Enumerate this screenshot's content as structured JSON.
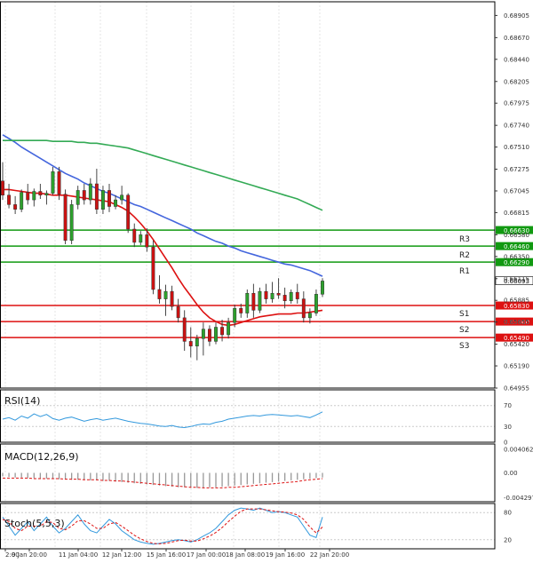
{
  "chart_data": {
    "type": "candlestick",
    "main": {
      "ylim": [
        0.64955,
        0.6905
      ],
      "y_ticks": [
        "0.68905",
        "0.68670",
        "0.68440",
        "0.68205",
        "0.67975",
        "0.67740",
        "0.67510",
        "0.67275",
        "0.67045",
        "0.66815",
        "0.66580",
        "0.66350",
        "0.66115",
        "0.65885",
        "0.65655",
        "0.65420",
        "0.65190",
        "0.64955"
      ],
      "candles": [
        [
          0.6715,
          0.6735,
          0.6695,
          0.67
        ],
        [
          0.67,
          0.6712,
          0.6686,
          0.669
        ],
        [
          0.669,
          0.6699,
          0.668,
          0.6685
        ],
        [
          0.6685,
          0.6706,
          0.6682,
          0.6703
        ],
        [
          0.6703,
          0.6712,
          0.669,
          0.6695
        ],
        [
          0.6695,
          0.6707,
          0.6688,
          0.6704
        ],
        [
          0.6704,
          0.6712,
          0.6696,
          0.67
        ],
        [
          0.67,
          0.6705,
          0.669,
          0.6702
        ],
        [
          0.6702,
          0.673,
          0.67,
          0.6725
        ],
        [
          0.6725,
          0.673,
          0.6695,
          0.6701
        ],
        [
          0.6701,
          0.6706,
          0.6648,
          0.6652
        ],
        [
          0.6652,
          0.6695,
          0.6648,
          0.669
        ],
        [
          0.669,
          0.671,
          0.6685,
          0.6705
        ],
        [
          0.6705,
          0.6712,
          0.669,
          0.6695
        ],
        [
          0.6695,
          0.6718,
          0.669,
          0.6712
        ],
        [
          0.6712,
          0.6728,
          0.668,
          0.6685
        ],
        [
          0.6685,
          0.671,
          0.668,
          0.6705
        ],
        [
          0.6705,
          0.6712,
          0.6682,
          0.6688
        ],
        [
          0.6688,
          0.67,
          0.6685,
          0.6695
        ],
        [
          0.6695,
          0.671,
          0.669,
          0.67
        ],
        [
          0.67,
          0.6702,
          0.666,
          0.6664
        ],
        [
          0.6664,
          0.667,
          0.6645,
          0.665
        ],
        [
          0.665,
          0.6662,
          0.6647,
          0.6658
        ],
        [
          0.6658,
          0.6665,
          0.664,
          0.6645
        ],
        [
          0.6645,
          0.6652,
          0.6595,
          0.66
        ],
        [
          0.66,
          0.6615,
          0.6585,
          0.659
        ],
        [
          0.659,
          0.6605,
          0.6572,
          0.6598
        ],
        [
          0.6598,
          0.6604,
          0.6578,
          0.6582
        ],
        [
          0.6582,
          0.659,
          0.6565,
          0.657
        ],
        [
          0.657,
          0.6578,
          0.6535,
          0.6545
        ],
        [
          0.6545,
          0.656,
          0.6528,
          0.654
        ],
        [
          0.654,
          0.6552,
          0.6525,
          0.6548
        ],
        [
          0.6548,
          0.6565,
          0.653,
          0.6558
        ],
        [
          0.6558,
          0.6562,
          0.654,
          0.6545
        ],
        [
          0.6545,
          0.6565,
          0.6542,
          0.656
        ],
        [
          0.656,
          0.6568,
          0.6545,
          0.6552
        ],
        [
          0.6552,
          0.657,
          0.6548,
          0.6565
        ],
        [
          0.6565,
          0.6584,
          0.656,
          0.658
        ],
        [
          0.658,
          0.6585,
          0.657,
          0.6575
        ],
        [
          0.6575,
          0.66,
          0.657,
          0.6596
        ],
        [
          0.6596,
          0.6606,
          0.657,
          0.6578
        ],
        [
          0.6578,
          0.6602,
          0.6575,
          0.6598
        ],
        [
          0.6598,
          0.6606,
          0.6585,
          0.659
        ],
        [
          0.659,
          0.6608,
          0.6586,
          0.6596
        ],
        [
          0.6596,
          0.6612,
          0.659,
          0.6594
        ],
        [
          0.6594,
          0.6602,
          0.658,
          0.6588
        ],
        [
          0.6588,
          0.66,
          0.6585,
          0.6597
        ],
        [
          0.6597,
          0.6606,
          0.6585,
          0.659
        ],
        [
          0.659,
          0.6598,
          0.6565,
          0.657
        ],
        [
          0.657,
          0.658,
          0.6564,
          0.6575
        ],
        [
          0.6575,
          0.66,
          0.6572,
          0.6595
        ],
        [
          0.6595,
          0.6612,
          0.6592,
          0.6609
        ]
      ],
      "ma_series": [
        {
          "color": "#dd1111",
          "values": [
            0.6706,
            0.6706,
            0.6705,
            0.6704,
            0.6703,
            0.6702,
            0.6702,
            0.6701,
            0.67,
            0.67,
            0.67,
            0.6699,
            0.6698,
            0.6697,
            0.6696,
            0.6695,
            0.6694,
            0.6693,
            0.669,
            0.6687,
            0.6683,
            0.6677,
            0.667,
            0.6662,
            0.6653,
            0.6643,
            0.6633,
            0.6623,
            0.6612,
            0.6602,
            0.6593,
            0.6584,
            0.6576,
            0.657,
            0.6566,
            0.6563,
            0.6562,
            0.6563,
            0.6565,
            0.6567,
            0.6569,
            0.6571,
            0.6572,
            0.6573,
            0.6574,
            0.6574,
            0.6574,
            0.6575,
            0.6575,
            0.6576,
            0.6577,
            0.6578
          ]
        },
        {
          "color": "#4466dd",
          "values": [
            0.6764,
            0.676,
            0.6756,
            0.6751,
            0.6747,
            0.6743,
            0.6739,
            0.6735,
            0.6731,
            0.6727,
            0.6723,
            0.672,
            0.6717,
            0.6713,
            0.671,
            0.6707,
            0.6704,
            0.6702,
            0.6699,
            0.6696,
            0.6693,
            0.669,
            0.6688,
            0.6685,
            0.6682,
            0.6679,
            0.6676,
            0.6673,
            0.667,
            0.6667,
            0.6664,
            0.666,
            0.6657,
            0.6654,
            0.6651,
            0.6649,
            0.6646,
            0.6644,
            0.6641,
            0.6639,
            0.6637,
            0.6635,
            0.6633,
            0.6631,
            0.6629,
            0.6627,
            0.6626,
            0.6624,
            0.6622,
            0.662,
            0.6617,
            0.6614
          ]
        },
        {
          "color": "#33aa55",
          "values": [
            0.6758,
            0.6758,
            0.6758,
            0.6758,
            0.6758,
            0.6758,
            0.6758,
            0.6758,
            0.6757,
            0.6757,
            0.6757,
            0.6757,
            0.6756,
            0.6756,
            0.6755,
            0.6755,
            0.6754,
            0.6753,
            0.6752,
            0.6751,
            0.675,
            0.6748,
            0.6746,
            0.6744,
            0.6742,
            0.674,
            0.6738,
            0.6736,
            0.6734,
            0.6732,
            0.673,
            0.6728,
            0.6726,
            0.6724,
            0.6722,
            0.672,
            0.6718,
            0.6716,
            0.6714,
            0.6712,
            0.671,
            0.6708,
            0.6706,
            0.6704,
            0.6702,
            0.67,
            0.6698,
            0.6696,
            0.6693,
            0.669,
            0.6687,
            0.6684
          ]
        }
      ],
      "levels": [
        {
          "name": "R3",
          "value": 0.6663,
          "label": "0.66630",
          "color": "#119911"
        },
        {
          "name": "R2",
          "value": 0.6646,
          "label": "0.66460",
          "color": "#119911"
        },
        {
          "name": "R1",
          "value": 0.6629,
          "label": "0.66290",
          "color": "#119911"
        },
        {
          "name": "S1",
          "value": 0.6583,
          "label": "0.65830",
          "color": "#dd1111"
        },
        {
          "name": "S2",
          "value": 0.6566,
          "label": "0.65660",
          "color": "#dd1111"
        },
        {
          "name": "S3",
          "value": 0.6549,
          "label": "0.65490",
          "color": "#dd1111"
        }
      ],
      "current_price": "0.66093"
    },
    "rsi": {
      "title": "RSI(14)",
      "ylim": [
        0,
        100
      ],
      "ticks": [
        "70",
        "30",
        "0"
      ],
      "color": "#3399dd",
      "values": [
        44,
        47,
        42,
        50,
        46,
        54,
        49,
        53,
        45,
        42,
        46,
        48,
        44,
        40,
        43,
        45,
        42,
        44,
        46,
        43,
        40,
        38,
        36,
        35,
        33,
        31,
        30,
        32,
        29,
        28,
        30,
        33,
        35,
        34,
        38,
        40,
        44,
        46,
        48,
        50,
        51,
        50,
        52,
        53,
        52,
        51,
        50,
        51,
        49,
        47,
        52,
        58
      ]
    },
    "macd": {
      "title": "MACD(12,26,9)",
      "ylim": [
        -0.005,
        0.005
      ],
      "ticks": [
        "0.004062",
        "0.00",
        "-0.004297"
      ],
      "histogram_color": "#999999",
      "signal_color": "#dd1111",
      "histogram": [
        -0.0006,
        -0.0007,
        -0.0008,
        -0.0008,
        -0.0009,
        -0.0009,
        -0.001,
        -0.001,
        -0.001,
        -0.0011,
        -0.0011,
        -0.0012,
        -0.0012,
        -0.0012,
        -0.0013,
        -0.0013,
        -0.0014,
        -0.0014,
        -0.0015,
        -0.0016,
        -0.0017,
        -0.0018,
        -0.0019,
        -0.002,
        -0.0021,
        -0.0022,
        -0.0023,
        -0.0024,
        -0.0025,
        -0.0025,
        -0.0026,
        -0.0026,
        -0.0026,
        -0.0025,
        -0.0025,
        -0.0024,
        -0.0023,
        -0.0022,
        -0.0021,
        -0.002,
        -0.0019,
        -0.0018,
        -0.0017,
        -0.0016,
        -0.0015,
        -0.0014,
        -0.0013,
        -0.0012,
        -0.0011,
        -0.001,
        -0.0009,
        -0.0008
      ],
      "signal": [
        -0.0009,
        -0.0009,
        -0.0009,
        -0.0009,
        -0.0009,
        -0.001,
        -0.001,
        -0.001,
        -0.001,
        -0.001,
        -0.0011,
        -0.0011,
        -0.0011,
        -0.0012,
        -0.0012,
        -0.0012,
        -0.0013,
        -0.0013,
        -0.0014,
        -0.0014,
        -0.0015,
        -0.0016,
        -0.0017,
        -0.0018,
        -0.0019,
        -0.002,
        -0.0021,
        -0.0022,
        -0.0023,
        -0.0024,
        -0.0025,
        -0.0025,
        -0.0026,
        -0.0026,
        -0.0026,
        -0.0026,
        -0.0025,
        -0.0025,
        -0.0024,
        -0.0023,
        -0.0022,
        -0.0021,
        -0.002,
        -0.0019,
        -0.0018,
        -0.0017,
        -0.0016,
        -0.0015,
        -0.0013,
        -0.0012,
        -0.0011,
        -0.001
      ]
    },
    "stoch": {
      "title": "Stoch(5,5,3)",
      "ylim": [
        0,
        100
      ],
      "ticks": [
        "80",
        "20"
      ],
      "main_color": "#3399dd",
      "signal_color": "#dd1111",
      "main": [
        70,
        50,
        30,
        45,
        60,
        40,
        55,
        70,
        50,
        35,
        45,
        60,
        75,
        55,
        40,
        35,
        50,
        65,
        55,
        40,
        30,
        20,
        15,
        12,
        10,
        12,
        15,
        18,
        20,
        18,
        15,
        20,
        28,
        35,
        45,
        60,
        75,
        85,
        90,
        88,
        85,
        90,
        85,
        80,
        82,
        80,
        75,
        70,
        50,
        30,
        25,
        70
      ],
      "signal": [
        65,
        60,
        45,
        40,
        50,
        50,
        50,
        60,
        58,
        45,
        42,
        50,
        62,
        62,
        55,
        45,
        45,
        55,
        58,
        50,
        40,
        30,
        22,
        16,
        12,
        11,
        12,
        15,
        18,
        19,
        17,
        17,
        22,
        28,
        36,
        47,
        60,
        72,
        83,
        88,
        88,
        88,
        86,
        84,
        82,
        81,
        79,
        75,
        65,
        48,
        35,
        48
      ]
    },
    "x_labels": [
      "2:00",
      "9 Jan 20:00",
      "11 Jan 04:00",
      "12 Jan 12:00",
      "15 Jan 16:00",
      "17 Jan 00:00",
      "18 Jan 08:00",
      "19 Jan 16:00",
      "22 Jan 20:00"
    ]
  }
}
